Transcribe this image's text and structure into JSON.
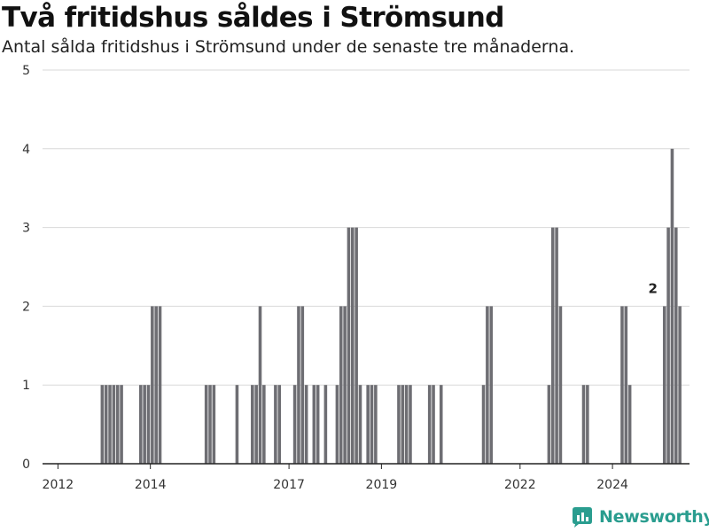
{
  "title": "Två fritidshus såldes i Strömsund",
  "subtitle": "Antal sålda fritidshus i Strömsund under de senaste tre månaderna.",
  "brand": {
    "name": "Newsworthy",
    "icon": "newsworthy-logo-icon",
    "color": "#2a9d8f"
  },
  "colors": {
    "bar": "#6e6e73",
    "highlight": "#2a9d8f",
    "grid": "#d9d9d9"
  },
  "chart_data": {
    "type": "bar",
    "title": "Två fritidshus såldes i Strömsund",
    "subtitle": "Antal sålda fritidshus i Strömsund under de senaste tre månaderna.",
    "xlabel": "",
    "ylabel": "",
    "ylim": [
      0,
      5
    ],
    "yticks": [
      0,
      1,
      2,
      3,
      4,
      5
    ],
    "xlim": [
      "2011-09",
      "2025-09"
    ],
    "xticks": [
      "2012",
      "2014",
      "2017",
      "2019",
      "2022",
      "2024"
    ],
    "xtick_dates": [
      "2012-01",
      "2014-01",
      "2017-01",
      "2019-01",
      "2022-01",
      "2024-01"
    ],
    "grid": true,
    "highlight": {
      "date": "2024-11",
      "value": 2,
      "label": "2"
    },
    "series": [
      {
        "values": [
          [
            "2012-12",
            1
          ],
          [
            "2013-01",
            1
          ],
          [
            "2013-02",
            1
          ],
          [
            "2013-03",
            1
          ],
          [
            "2013-04",
            1
          ],
          [
            "2013-05",
            1
          ],
          [
            "2013-10",
            1
          ],
          [
            "2013-11",
            1
          ],
          [
            "2013-12",
            1
          ],
          [
            "2014-01",
            2
          ],
          [
            "2014-02",
            2
          ],
          [
            "2014-03",
            2
          ],
          [
            "2015-03",
            1
          ],
          [
            "2015-04",
            1
          ],
          [
            "2015-05",
            1
          ],
          [
            "2015-11",
            1
          ],
          [
            "2016-03",
            1
          ],
          [
            "2016-04",
            1
          ],
          [
            "2016-05",
            2
          ],
          [
            "2016-06",
            1
          ],
          [
            "2016-09",
            1
          ],
          [
            "2016-10",
            1
          ],
          [
            "2017-02",
            1
          ],
          [
            "2017-03",
            2
          ],
          [
            "2017-04",
            2
          ],
          [
            "2017-05",
            1
          ],
          [
            "2017-07",
            1
          ],
          [
            "2017-08",
            1
          ],
          [
            "2017-10",
            1
          ],
          [
            "2018-01",
            1
          ],
          [
            "2018-02",
            2
          ],
          [
            "2018-03",
            2
          ],
          [
            "2018-04",
            3
          ],
          [
            "2018-05",
            3
          ],
          [
            "2018-06",
            3
          ],
          [
            "2018-07",
            1
          ],
          [
            "2018-09",
            1
          ],
          [
            "2018-10",
            1
          ],
          [
            "2018-11",
            1
          ],
          [
            "2019-05",
            1
          ],
          [
            "2019-06",
            1
          ],
          [
            "2019-07",
            1
          ],
          [
            "2019-08",
            1
          ],
          [
            "2020-01",
            1
          ],
          [
            "2020-02",
            1
          ],
          [
            "2020-04",
            1
          ],
          [
            "2021-03",
            1
          ],
          [
            "2021-04",
            2
          ],
          [
            "2021-05",
            2
          ],
          [
            "2022-08",
            1
          ],
          [
            "2022-09",
            3
          ],
          [
            "2022-10",
            3
          ],
          [
            "2022-11",
            2
          ],
          [
            "2023-05",
            1
          ],
          [
            "2023-06",
            1
          ],
          [
            "2024-03",
            2
          ],
          [
            "2024-04",
            2
          ],
          [
            "2024-05",
            1
          ],
          [
            "2025-02",
            2
          ],
          [
            "2025-03",
            3
          ],
          [
            "2025-04",
            4
          ],
          [
            "2025-05",
            3
          ],
          [
            "2025-06",
            2
          ]
        ]
      }
    ]
  }
}
